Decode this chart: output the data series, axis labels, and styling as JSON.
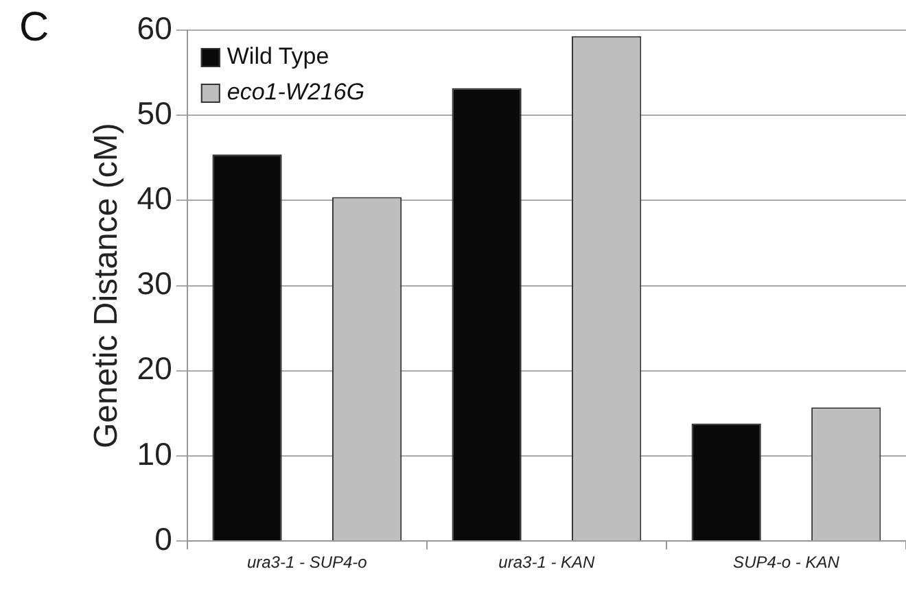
{
  "chart_data": {
    "type": "bar",
    "ylabel": "Genetic Distance (cM)",
    "categories": [
      "ura3-1 - SUP4-o",
      "ura3-1 - KAN",
      "SUP4-o - KAN"
    ],
    "series": [
      {
        "name": "Wild Type",
        "color": "#0a0a0a",
        "values": [
          45.4,
          53.2,
          13.8
        ]
      },
      {
        "name": "eco1-W216G",
        "color": "#bebebe",
        "values": [
          40.4,
          59.3,
          15.7
        ]
      }
    ],
    "ylim": [
      0,
      60
    ],
    "yticks": [
      0,
      10,
      20,
      30,
      40,
      50,
      60
    ],
    "grid": "y",
    "legend": "top left",
    "annotations": [
      "C"
    ]
  }
}
